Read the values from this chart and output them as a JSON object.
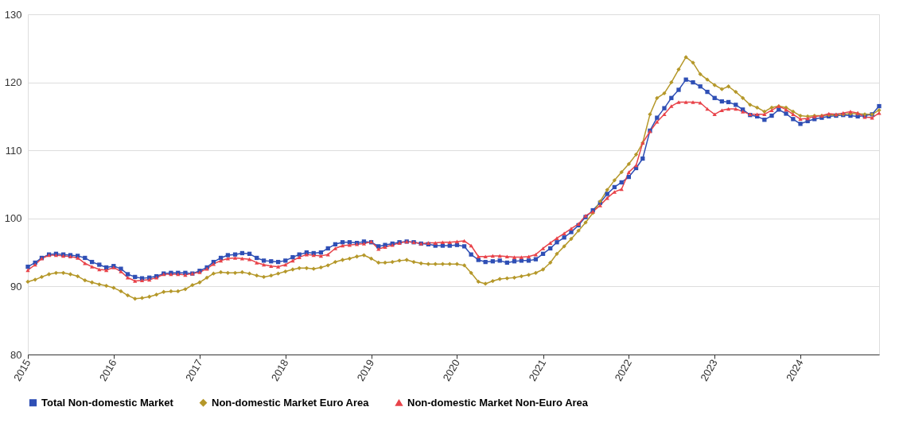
{
  "chart_data": {
    "type": "line",
    "x": [
      "2015-01",
      "2015-02",
      "2015-03",
      "2015-04",
      "2015-05",
      "2015-06",
      "2015-07",
      "2015-08",
      "2015-09",
      "2015-10",
      "2015-11",
      "2015-12",
      "2016-01",
      "2016-02",
      "2016-03",
      "2016-04",
      "2016-05",
      "2016-06",
      "2016-07",
      "2016-08",
      "2016-09",
      "2016-10",
      "2016-11",
      "2016-12",
      "2017-01",
      "2017-02",
      "2017-03",
      "2017-04",
      "2017-05",
      "2017-06",
      "2017-07",
      "2017-08",
      "2017-09",
      "2017-10",
      "2017-11",
      "2017-12",
      "2018-01",
      "2018-02",
      "2018-03",
      "2018-04",
      "2018-05",
      "2018-06",
      "2018-07",
      "2018-08",
      "2018-09",
      "2018-10",
      "2018-11",
      "2018-12",
      "2019-01",
      "2019-02",
      "2019-03",
      "2019-04",
      "2019-05",
      "2019-06",
      "2019-07",
      "2019-08",
      "2019-09",
      "2019-10",
      "2019-11",
      "2019-12",
      "2020-01",
      "2020-02",
      "2020-03",
      "2020-04",
      "2020-05",
      "2020-06",
      "2020-07",
      "2020-08",
      "2020-09",
      "2020-10",
      "2020-11",
      "2020-12",
      "2021-01",
      "2021-02",
      "2021-03",
      "2021-04",
      "2021-05",
      "2021-06",
      "2021-07",
      "2021-08",
      "2021-09",
      "2021-10",
      "2021-11",
      "2021-12",
      "2022-01",
      "2022-02",
      "2022-03",
      "2022-04",
      "2022-05",
      "2022-06",
      "2022-07",
      "2022-08",
      "2022-09",
      "2022-10",
      "2022-11",
      "2022-12",
      "2023-01",
      "2023-02",
      "2023-03",
      "2023-04",
      "2023-05",
      "2023-06",
      "2023-07",
      "2023-08",
      "2023-09",
      "2023-10",
      "2023-11",
      "2023-12",
      "2024-01",
      "2024-02",
      "2024-03",
      "2024-04",
      "2024-05",
      "2024-06",
      "2024-07",
      "2024-08",
      "2024-09",
      "2024-10",
      "2024-11",
      "2024-12"
    ],
    "series": [
      {
        "name": "Total Non-domestic Market",
        "color": "#2f4fb5",
        "marker": "square",
        "values": [
          92.9,
          93.5,
          94.2,
          94.7,
          94.8,
          94.7,
          94.6,
          94.5,
          94.2,
          93.6,
          93.2,
          92.8,
          93.0,
          92.6,
          91.8,
          91.4,
          91.2,
          91.3,
          91.5,
          91.9,
          92.0,
          92.0,
          92.0,
          91.9,
          92.3,
          92.8,
          93.6,
          94.2,
          94.6,
          94.7,
          94.9,
          94.8,
          94.2,
          93.8,
          93.7,
          93.6,
          93.8,
          94.3,
          94.7,
          95.0,
          94.9,
          95.0,
          95.6,
          96.2,
          96.5,
          96.5,
          96.4,
          96.6,
          96.5,
          95.9,
          96.1,
          96.3,
          96.5,
          96.6,
          96.5,
          96.3,
          96.2,
          96.0,
          96.0,
          96.0,
          96.1,
          95.9,
          94.7,
          93.9,
          93.6,
          93.7,
          93.8,
          93.5,
          93.7,
          93.8,
          93.8,
          94.0,
          94.8,
          95.6,
          96.5,
          97.2,
          98.0,
          99.0,
          100.2,
          101.2,
          102.3,
          103.6,
          104.6,
          105.3,
          106.1,
          107.4,
          108.8,
          112.9,
          114.8,
          116.2,
          117.7,
          118.9,
          120.4,
          120.0,
          119.4,
          118.6,
          117.7,
          117.2,
          117.1,
          116.7,
          116.0,
          115.2,
          115.0,
          114.5,
          115.1,
          116.0,
          115.4,
          114.6,
          113.9,
          114.3,
          114.6,
          114.8,
          115.0,
          115.1,
          115.2,
          115.1,
          115.0,
          115.1,
          115.3,
          116.5
        ]
      },
      {
        "name": "Non-domestic Market Euro Area",
        "color": "#b5982a",
        "marker": "diamond",
        "values": [
          90.7,
          91.0,
          91.4,
          91.8,
          92.0,
          92.0,
          91.8,
          91.5,
          90.9,
          90.6,
          90.3,
          90.1,
          89.8,
          89.3,
          88.7,
          88.2,
          88.3,
          88.5,
          88.8,
          89.2,
          89.3,
          89.3,
          89.6,
          90.2,
          90.6,
          91.3,
          91.9,
          92.1,
          92.0,
          92.0,
          92.1,
          91.9,
          91.6,
          91.4,
          91.6,
          91.9,
          92.2,
          92.5,
          92.7,
          92.7,
          92.6,
          92.8,
          93.1,
          93.6,
          93.9,
          94.1,
          94.4,
          94.6,
          94.1,
          93.5,
          93.5,
          93.6,
          93.8,
          93.9,
          93.6,
          93.4,
          93.3,
          93.3,
          93.3,
          93.3,
          93.3,
          93.1,
          92.0,
          90.7,
          90.4,
          90.8,
          91.1,
          91.2,
          91.3,
          91.5,
          91.7,
          92.0,
          92.5,
          93.5,
          94.8,
          95.9,
          97.0,
          98.2,
          99.4,
          100.8,
          102.5,
          104.2,
          105.6,
          106.8,
          108.0,
          109.4,
          111.1,
          115.3,
          117.7,
          118.4,
          120.0,
          121.9,
          123.7,
          122.9,
          121.2,
          120.4,
          119.6,
          119.0,
          119.4,
          118.6,
          117.7,
          116.7,
          116.3,
          115.7,
          116.3,
          116.5,
          116.3,
          115.7,
          115.1,
          115.0,
          115.1,
          115.1,
          115.2,
          115.2,
          115.3,
          115.4,
          115.4,
          115.3,
          115.3,
          115.9
        ]
      },
      {
        "name": "Non-domestic Market Non-Euro Area",
        "color": "#e8434a",
        "marker": "triangle",
        "values": [
          92.4,
          93.2,
          94.1,
          94.6,
          94.6,
          94.5,
          94.4,
          94.2,
          93.4,
          92.9,
          92.5,
          92.4,
          92.8,
          92.2,
          91.3,
          90.8,
          90.9,
          91.0,
          91.3,
          91.8,
          91.8,
          91.8,
          91.7,
          91.9,
          92.1,
          92.6,
          93.3,
          93.8,
          94.1,
          94.2,
          94.1,
          94.0,
          93.5,
          93.2,
          93.0,
          92.9,
          93.2,
          93.8,
          94.3,
          94.7,
          94.6,
          94.5,
          94.7,
          95.6,
          96.0,
          96.1,
          96.2,
          96.3,
          96.6,
          95.5,
          95.8,
          96.1,
          96.4,
          96.6,
          96.5,
          96.3,
          96.4,
          96.4,
          96.5,
          96.5,
          96.6,
          96.7,
          96.0,
          94.4,
          94.4,
          94.5,
          94.5,
          94.4,
          94.3,
          94.3,
          94.4,
          94.7,
          95.6,
          96.4,
          97.1,
          97.8,
          98.5,
          99.2,
          100.4,
          101.0,
          101.9,
          103.0,
          103.9,
          104.3,
          106.8,
          107.8,
          111.1,
          112.8,
          114.2,
          115.3,
          116.5,
          117.1,
          117.1,
          117.1,
          117.0,
          116.1,
          115.3,
          115.9,
          116.1,
          116.1,
          115.7,
          115.3,
          115.3,
          115.3,
          115.9,
          116.5,
          116.0,
          115.3,
          114.6,
          114.7,
          115.0,
          115.1,
          115.4,
          115.3,
          115.5,
          115.7,
          115.5,
          114.9,
          114.8,
          115.5
        ]
      }
    ],
    "xlim": [
      "2015-01",
      "2024-12"
    ],
    "xticks": [
      "2015",
      "2016",
      "2017",
      "2018",
      "2019",
      "2020",
      "2021",
      "2022",
      "2023",
      "2024"
    ],
    "ylim": [
      80,
      130
    ],
    "yticks": [
      80,
      90,
      100,
      110,
      120,
      130
    ],
    "grid": "y",
    "legend": "bottom",
    "line_style": "solid"
  }
}
